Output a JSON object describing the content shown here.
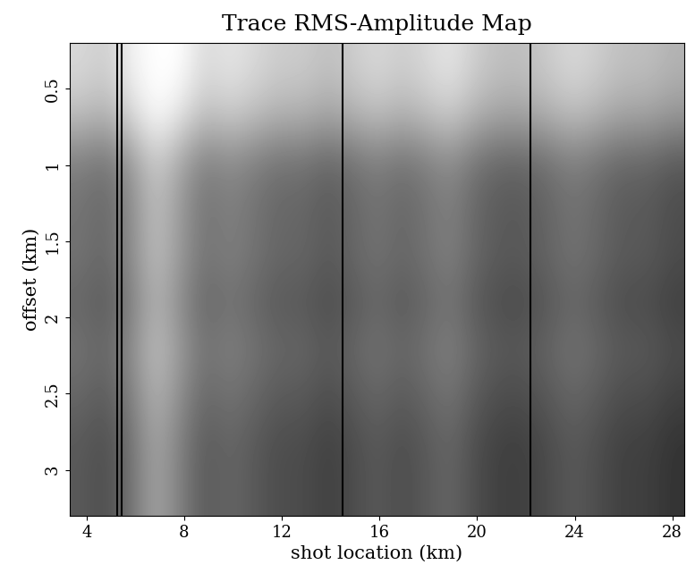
{
  "chart_data": {
    "type": "heatmap",
    "title": "Trace RMS-Amplitude Map",
    "x_label": "shot location (km)",
    "y_label": "offset (km)",
    "xlim": [
      3.3,
      28.5
    ],
    "ylim": [
      3.3,
      0.2
    ],
    "xticks": [
      4,
      8,
      12,
      16,
      20,
      24,
      28
    ],
    "yticks": [
      0.5,
      1,
      1.5,
      2,
      2.5,
      3
    ],
    "color": "gray",
    "color_range": [
      0,
      1
    ],
    "vlines": [
      5.25,
      5.45,
      14.5,
      22.2
    ],
    "cells": [
      [
        0.85,
        0.8,
        0.95,
        1.0,
        1.0,
        0.85,
        0.9,
        0.85,
        0.8,
        0.8,
        0.75,
        0.8,
        0.85,
        0.8,
        0.85,
        0.9,
        0.8,
        0.75,
        0.75,
        0.8,
        0.85,
        0.8,
        0.75,
        0.75,
        0.7
      ],
      [
        0.75,
        0.7,
        0.85,
        1.0,
        0.9,
        0.75,
        0.8,
        0.75,
        0.7,
        0.7,
        0.65,
        0.7,
        0.75,
        0.7,
        0.75,
        0.8,
        0.7,
        0.65,
        0.65,
        0.7,
        0.75,
        0.7,
        0.65,
        0.65,
        0.6
      ],
      [
        0.5,
        0.45,
        0.6,
        0.8,
        0.65,
        0.5,
        0.55,
        0.5,
        0.45,
        0.45,
        0.4,
        0.45,
        0.5,
        0.45,
        0.5,
        0.55,
        0.45,
        0.4,
        0.4,
        0.45,
        0.5,
        0.45,
        0.4,
        0.4,
        0.35
      ],
      [
        0.45,
        0.4,
        0.55,
        0.75,
        0.6,
        0.45,
        0.5,
        0.45,
        0.4,
        0.4,
        0.35,
        0.4,
        0.45,
        0.4,
        0.45,
        0.5,
        0.4,
        0.35,
        0.35,
        0.4,
        0.45,
        0.4,
        0.35,
        0.35,
        0.3
      ],
      [
        0.45,
        0.4,
        0.55,
        0.75,
        0.6,
        0.45,
        0.5,
        0.45,
        0.4,
        0.4,
        0.35,
        0.4,
        0.45,
        0.4,
        0.45,
        0.5,
        0.4,
        0.35,
        0.35,
        0.4,
        0.45,
        0.4,
        0.35,
        0.35,
        0.3
      ],
      [
        0.4,
        0.35,
        0.5,
        0.7,
        0.55,
        0.4,
        0.45,
        0.4,
        0.35,
        0.35,
        0.3,
        0.35,
        0.4,
        0.35,
        0.4,
        0.45,
        0.35,
        0.3,
        0.3,
        0.35,
        0.4,
        0.35,
        0.3,
        0.3,
        0.25
      ],
      [
        0.45,
        0.4,
        0.55,
        0.75,
        0.6,
        0.45,
        0.5,
        0.45,
        0.4,
        0.4,
        0.35,
        0.4,
        0.45,
        0.4,
        0.45,
        0.5,
        0.4,
        0.35,
        0.35,
        0.4,
        0.45,
        0.4,
        0.35,
        0.35,
        0.3
      ],
      [
        0.4,
        0.35,
        0.5,
        0.7,
        0.55,
        0.4,
        0.45,
        0.4,
        0.35,
        0.35,
        0.3,
        0.35,
        0.4,
        0.35,
        0.4,
        0.45,
        0.35,
        0.3,
        0.3,
        0.35,
        0.4,
        0.35,
        0.3,
        0.3,
        0.25
      ],
      [
        0.35,
        0.3,
        0.45,
        0.65,
        0.5,
        0.35,
        0.4,
        0.35,
        0.3,
        0.3,
        0.25,
        0.3,
        0.35,
        0.3,
        0.35,
        0.4,
        0.3,
        0.25,
        0.25,
        0.3,
        0.35,
        0.3,
        0.25,
        0.25,
        0.2
      ],
      [
        0.35,
        0.3,
        0.45,
        0.65,
        0.5,
        0.35,
        0.4,
        0.35,
        0.3,
        0.3,
        0.25,
        0.3,
        0.35,
        0.3,
        0.35,
        0.4,
        0.3,
        0.25,
        0.25,
        0.3,
        0.35,
        0.3,
        0.25,
        0.25,
        0.2
      ]
    ]
  }
}
